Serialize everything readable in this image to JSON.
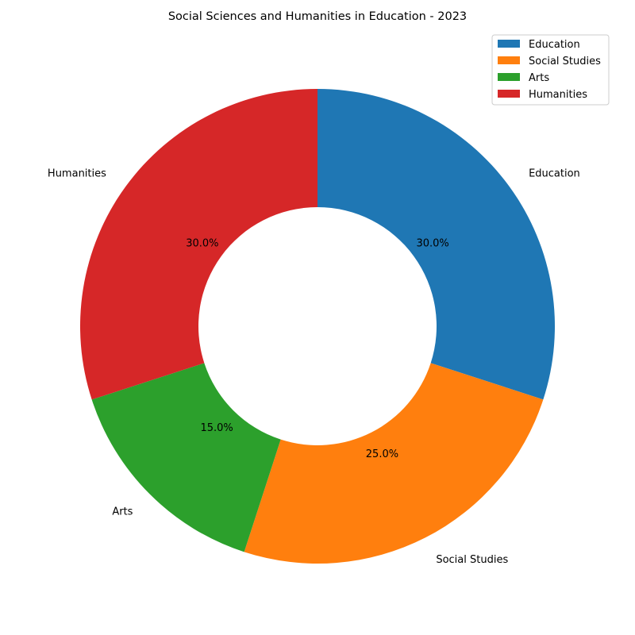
{
  "chart_data": {
    "type": "pie",
    "variant": "donut",
    "title": "Social Sciences and Humanities in Education - 2023",
    "categories": [
      "Education",
      "Social Studies",
      "Arts",
      "Humanities"
    ],
    "values": [
      30.0,
      25.0,
      15.0,
      30.0
    ],
    "percent_labels": [
      "30.0%",
      "25.0%",
      "15.0%",
      "30.0%"
    ],
    "colors": [
      "#1f77b4",
      "#ff7f0e",
      "#2ca02c",
      "#d62728"
    ],
    "start_angle_deg": 90,
    "direction": "clockwise",
    "legend": {
      "placement": "top-right",
      "entries": [
        "Education",
        "Social Studies",
        "Arts",
        "Humanities"
      ]
    }
  }
}
